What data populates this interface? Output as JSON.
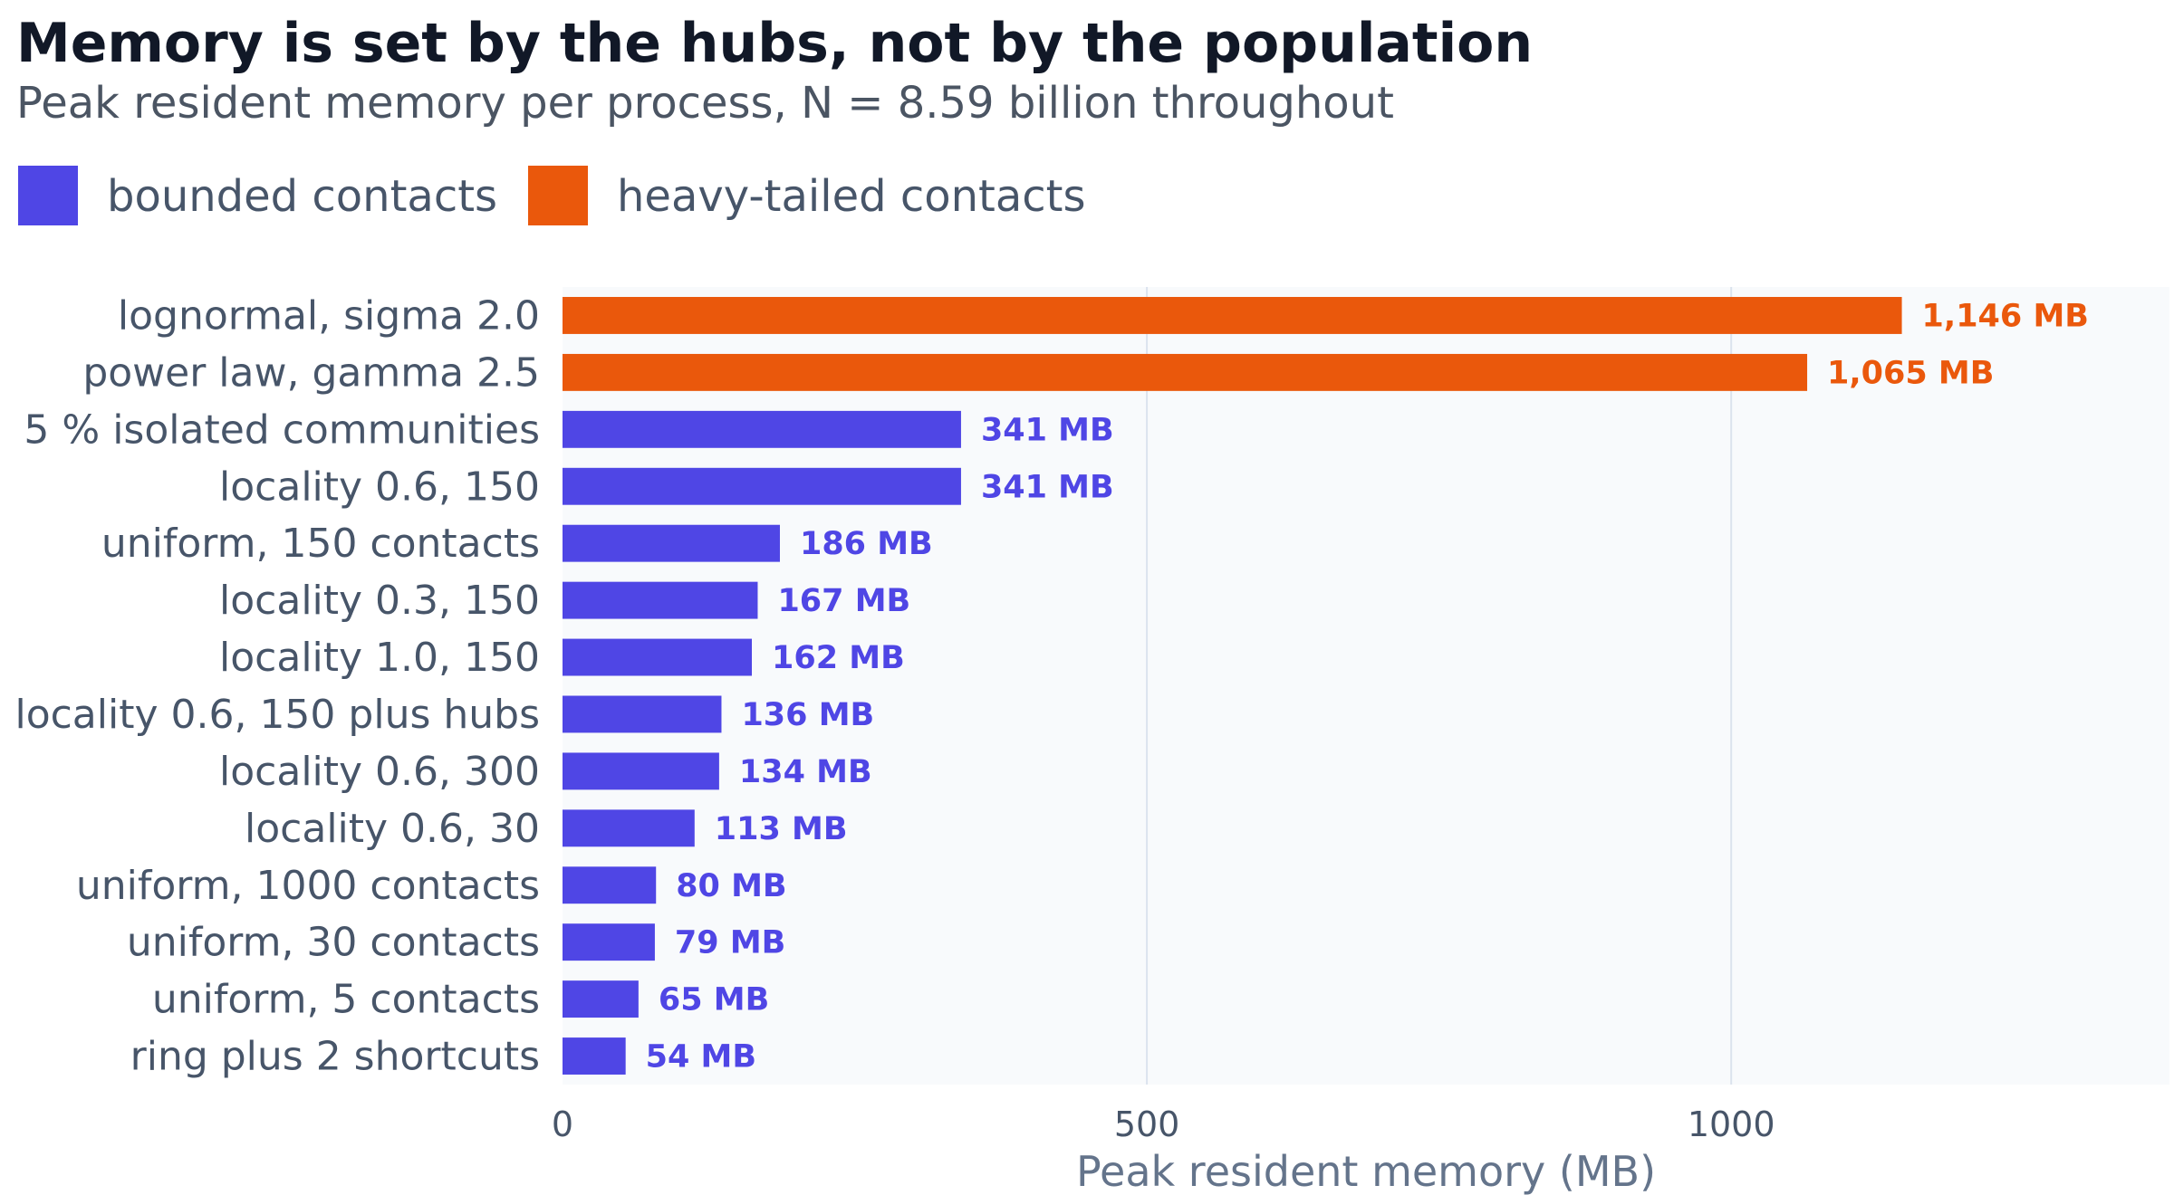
{
  "chart_data": {
    "type": "bar",
    "orientation": "horizontal",
    "title": "Memory is set by the hubs, not by the population",
    "subtitle": "Peak resident memory per process, N = 8.59 billion throughout",
    "xlabel": "Peak resident memory (MB)",
    "ylabel": "",
    "xlim": [
      0,
      1375
    ],
    "xticks": [
      0,
      500,
      1000
    ],
    "grid": "vertical",
    "legend_position": "top-left",
    "legend": [
      {
        "name": "bounded contacts",
        "color": "#4f46e5"
      },
      {
        "name": "heavy-tailed contacts",
        "color": "#ea580c"
      }
    ],
    "bars": [
      {
        "label": "lognormal, sigma 2.0",
        "value": 1146,
        "group": "heavy-tailed contacts",
        "value_label": "1,146 MB"
      },
      {
        "label": "power law, gamma 2.5",
        "value": 1065,
        "group": "heavy-tailed contacts",
        "value_label": "1,065 MB"
      },
      {
        "label": "5 % isolated communities",
        "value": 341,
        "group": "bounded contacts",
        "value_label": "341 MB"
      },
      {
        "label": "locality 0.6, 150",
        "value": 341,
        "group": "bounded contacts",
        "value_label": "341 MB"
      },
      {
        "label": "uniform, 150 contacts",
        "value": 186,
        "group": "bounded contacts",
        "value_label": "186 MB"
      },
      {
        "label": "locality 0.3, 150",
        "value": 167,
        "group": "bounded contacts",
        "value_label": "167 MB"
      },
      {
        "label": "locality 1.0, 150",
        "value": 162,
        "group": "bounded contacts",
        "value_label": "162 MB"
      },
      {
        "label": "locality 0.6, 150 plus hubs",
        "value": 136,
        "group": "bounded contacts",
        "value_label": "136 MB"
      },
      {
        "label": "locality 0.6, 300",
        "value": 134,
        "group": "bounded contacts",
        "value_label": "134 MB"
      },
      {
        "label": "locality 0.6, 30",
        "value": 113,
        "group": "bounded contacts",
        "value_label": "113 MB"
      },
      {
        "label": "uniform, 1000 contacts",
        "value": 80,
        "group": "bounded contacts",
        "value_label": "80 MB"
      },
      {
        "label": "uniform, 30 contacts",
        "value": 79,
        "group": "bounded contacts",
        "value_label": "79 MB"
      },
      {
        "label": "uniform, 5 contacts",
        "value": 65,
        "group": "bounded contacts",
        "value_label": "65 MB"
      },
      {
        "label": "ring plus 2 shortcuts",
        "value": 54,
        "group": "bounded contacts",
        "value_label": "54 MB"
      }
    ]
  }
}
